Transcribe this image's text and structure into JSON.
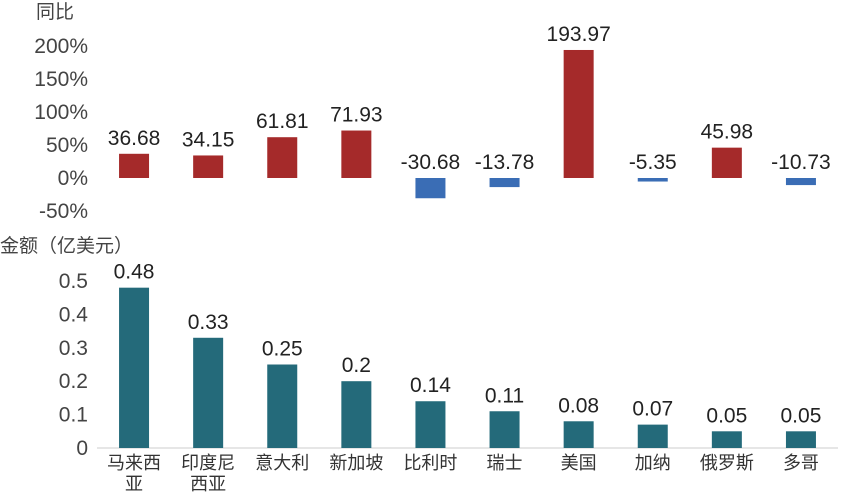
{
  "chart_data": [
    {
      "type": "bar",
      "ylabel": "同比",
      "categories": [
        "马来西亚",
        "印度尼西亚",
        "意大利",
        "新加坡",
        "比利时",
        "瑞士",
        "美国",
        "加纳",
        "俄罗斯",
        "多哥"
      ],
      "values": [
        36.68,
        34.15,
        61.81,
        71.93,
        -30.68,
        -13.78,
        193.97,
        -5.35,
        45.98,
        -10.73
      ],
      "value_labels": [
        "36.68",
        "34.15",
        "61.81",
        "71.93",
        "-30.68",
        "-13.78",
        "193.97",
        "-5.35",
        "45.98",
        "-10.73"
      ],
      "yticks": [
        "200%",
        "150%",
        "100%",
        "50%",
        "0%",
        "-50%"
      ],
      "ylim": [
        -50,
        200
      ],
      "positive_color": "#a52a2a",
      "negative_color": "#3a6db5",
      "grid": false
    },
    {
      "type": "bar",
      "ylabel": "金额（亿美元）",
      "categories": [
        "马来西亚",
        "印度尼西亚",
        "意大利",
        "新加坡",
        "比利时",
        "瑞士",
        "美国",
        "加纳",
        "俄罗斯",
        "多哥"
      ],
      "category_lines": [
        [
          "马来西",
          "亚"
        ],
        [
          "印度尼",
          "西亚"
        ],
        [
          "意大利"
        ],
        [
          "新加坡"
        ],
        [
          "比利时"
        ],
        [
          "瑞士"
        ],
        [
          "美国"
        ],
        [
          "加纳"
        ],
        [
          "俄罗斯"
        ],
        [
          "多哥"
        ]
      ],
      "values": [
        0.48,
        0.33,
        0.25,
        0.2,
        0.14,
        0.11,
        0.08,
        0.07,
        0.05,
        0.05
      ],
      "value_labels": [
        "0.48",
        "0.33",
        "0.25",
        "0.2",
        "0.14",
        "0.11",
        "0.08",
        "0.07",
        "0.05",
        "0.05"
      ],
      "yticks": [
        "0.5",
        "0.4",
        "0.3",
        "0.2",
        "0.1",
        "0"
      ],
      "ylim": [
        0,
        0.5
      ],
      "bar_color": "#246a7a",
      "grid": false
    }
  ]
}
